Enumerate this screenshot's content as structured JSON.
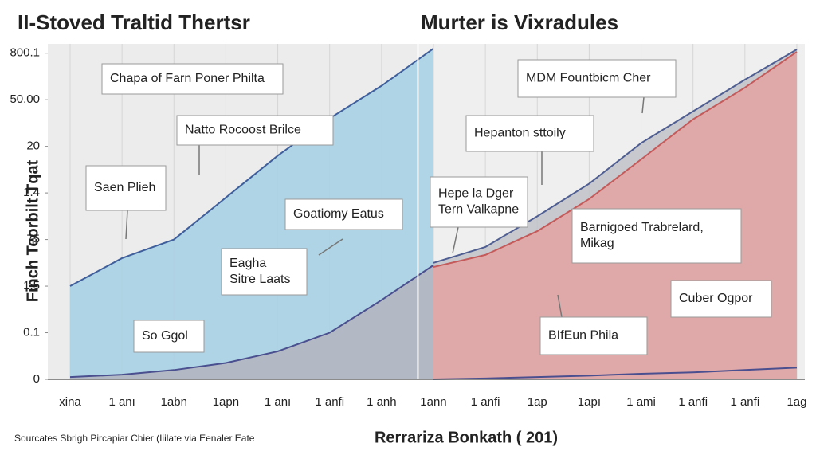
{
  "chart_data": {
    "type": "area",
    "title": "II-Stoved Traltid Thertsr",
    "subtitle": "Murter is Vixradules",
    "y_label": "Finch Teorbilt Tqat",
    "x_label": "Rerrariza Bonkath ( 201)",
    "source": "Sourcates Sbrigh Pircapiar Chier (Iiilate via Eenaler Eate",
    "categories": [
      "xina",
      "1 anı",
      "1abn",
      "1apn",
      "1 anı",
      "1 anfi",
      "1 anh",
      "1ann",
      "1 anfi",
      "1ap",
      "1apı",
      "1 ami",
      "1 anfi",
      "1 anfi",
      "1ag"
    ],
    "ylim": [
      0,
      7.2
    ],
    "yticks": [
      {
        "value": 0,
        "label": "0"
      },
      {
        "value": 1,
        "label": "0.1"
      },
      {
        "value": 2,
        "label": "1.5"
      },
      {
        "value": 3,
        "label": "75"
      },
      {
        "value": 4,
        "label": "1.4"
      },
      {
        "value": 5,
        "label": "20"
      },
      {
        "value": 6,
        "label": "50.00"
      },
      {
        "value": 7,
        "label": "800.1"
      }
    ],
    "grid": true,
    "series": [
      {
        "color": "#3f5f9c",
        "fill": "#a8d2e4",
        "values": [
          2.0,
          2.6,
          3.0,
          3.9,
          4.8,
          5.6,
          6.3,
          7.1,
          null,
          null,
          null,
          null,
          null,
          null,
          null
        ]
      },
      {
        "color": "#4a4f8f",
        "fill": "#b3b6c0",
        "values": [
          0.05,
          0.1,
          0.2,
          0.35,
          0.6,
          1.0,
          1.7,
          2.45,
          null,
          null,
          null,
          null,
          null,
          null,
          null
        ]
      },
      {
        "color": "#4f5e92",
        "fill": "#c2c4ca",
        "values": [
          null,
          null,
          null,
          null,
          null,
          null,
          null,
          2.5,
          2.84,
          3.5,
          4.2,
          5.07,
          5.75,
          6.43,
          7.08
        ]
      },
      {
        "color": "#c45a5a",
        "fill": "#e2a5a5",
        "values": [
          null,
          null,
          null,
          null,
          null,
          null,
          null,
          2.41,
          2.67,
          3.18,
          3.87,
          4.72,
          5.58,
          6.26,
          7.03
        ]
      },
      {
        "color": "#4a4f8f",
        "fill": "none",
        "values": [
          null,
          null,
          null,
          null,
          null,
          null,
          null,
          0,
          0.02,
          0.05,
          0.08,
          0.12,
          0.15,
          0.2,
          0.25
        ]
      }
    ],
    "annotations": [
      [
        "Chapa of Farn Poner Philta"
      ],
      [
        "Natto Rocoost Brilce"
      ],
      [
        "Saen Plieh"
      ],
      [
        "Goatiomy Eatus"
      ],
      [
        "Eagha",
        "Sitre Laats"
      ],
      [
        "So Ggol"
      ],
      [
        "MDM Fountbicm Cher"
      ],
      [
        "Hepanton sttoily"
      ],
      [
        "Hepe la Dger",
        "Tern Valkapne"
      ],
      [
        "Barnigoed Trabrelard,",
        "Mikag"
      ],
      [
        "Cuber Ogpor"
      ],
      [
        "BIfEun Phila"
      ]
    ]
  }
}
